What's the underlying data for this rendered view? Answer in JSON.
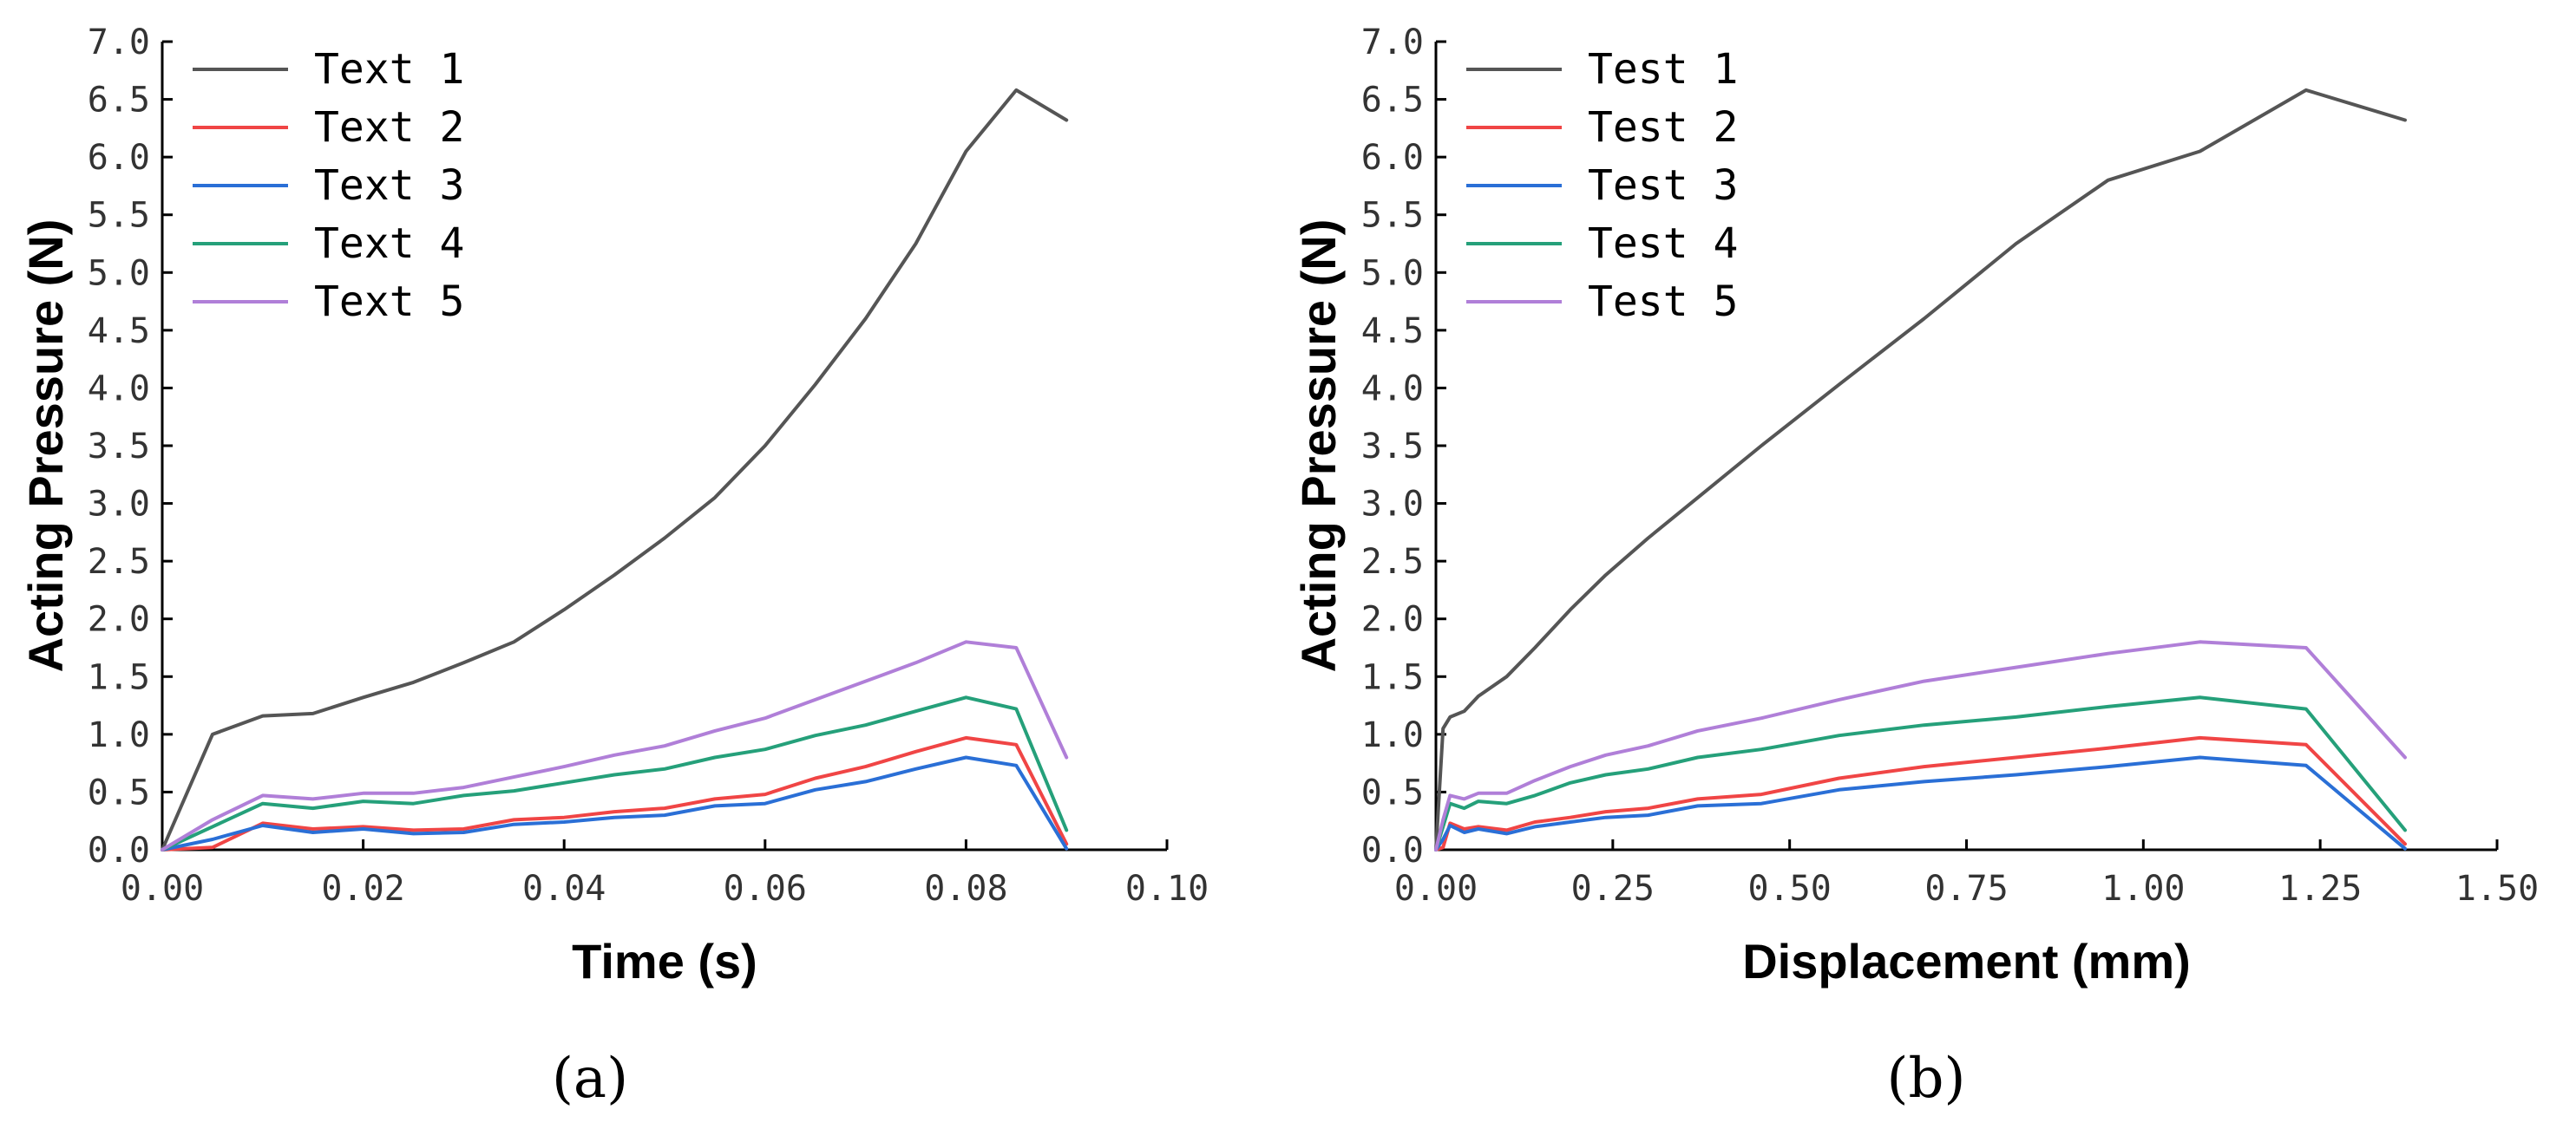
{
  "chart_data": [
    {
      "type": "line",
      "panel_label": "(a)",
      "xlabel": "Time (s)",
      "ylabel": "Acting Pressure (N)",
      "xlim": [
        0,
        0.1
      ],
      "ylim": [
        0,
        7
      ],
      "xticks": [
        "0.00",
        "0.02",
        "0.04",
        "0.06",
        "0.08",
        "0.10"
      ],
      "yticks": [
        "0.0",
        "0.5",
        "1.0",
        "1.5",
        "2.0",
        "2.5",
        "3.0",
        "3.5",
        "4.0",
        "4.5",
        "5.0",
        "5.5",
        "6.0",
        "6.5",
        "7.0"
      ],
      "legend_position": "top-left",
      "series": [
        {
          "name": "Text 1",
          "color": "#555555",
          "x": [
            0,
            0.005,
            0.01,
            0.015,
            0.02,
            0.025,
            0.03,
            0.035,
            0.04,
            0.045,
            0.05,
            0.055,
            0.06,
            0.065,
            0.07,
            0.075,
            0.08,
            0.085,
            0.09
          ],
          "y": [
            0,
            1.0,
            1.16,
            1.18,
            1.32,
            1.45,
            1.62,
            1.8,
            2.08,
            2.38,
            2.7,
            3.05,
            3.5,
            4.03,
            4.6,
            5.25,
            6.05,
            6.58,
            6.32
          ]
        },
        {
          "name": "Text 2",
          "color": "#f04545",
          "x": [
            0,
            0.005,
            0.01,
            0.015,
            0.02,
            0.025,
            0.03,
            0.035,
            0.04,
            0.045,
            0.05,
            0.055,
            0.06,
            0.065,
            0.07,
            0.075,
            0.08,
            0.085,
            0.09
          ],
          "y": [
            0,
            0.02,
            0.23,
            0.18,
            0.2,
            0.17,
            0.18,
            0.26,
            0.28,
            0.33,
            0.36,
            0.44,
            0.48,
            0.62,
            0.72,
            0.85,
            0.97,
            0.91,
            0.05
          ]
        },
        {
          "name": "Text 3",
          "color": "#2a6fd6",
          "x": [
            0,
            0.005,
            0.01,
            0.015,
            0.02,
            0.025,
            0.03,
            0.035,
            0.04,
            0.045,
            0.05,
            0.055,
            0.06,
            0.065,
            0.07,
            0.075,
            0.08,
            0.085,
            0.09
          ],
          "y": [
            0,
            0.09,
            0.21,
            0.15,
            0.18,
            0.14,
            0.15,
            0.22,
            0.24,
            0.28,
            0.3,
            0.38,
            0.4,
            0.52,
            0.59,
            0.7,
            0.8,
            0.73,
            0.01
          ]
        },
        {
          "name": "Text 4",
          "color": "#25a07a",
          "x": [
            0,
            0.005,
            0.01,
            0.015,
            0.02,
            0.025,
            0.03,
            0.035,
            0.04,
            0.045,
            0.05,
            0.055,
            0.06,
            0.065,
            0.07,
            0.075,
            0.08,
            0.085,
            0.09
          ],
          "y": [
            0,
            0.2,
            0.4,
            0.36,
            0.42,
            0.4,
            0.47,
            0.51,
            0.58,
            0.65,
            0.7,
            0.8,
            0.87,
            0.99,
            1.08,
            1.2,
            1.32,
            1.22,
            0.17
          ]
        },
        {
          "name": "Text 5",
          "color": "#b07fd8",
          "x": [
            0,
            0.005,
            0.01,
            0.015,
            0.02,
            0.025,
            0.03,
            0.035,
            0.04,
            0.045,
            0.05,
            0.055,
            0.06,
            0.065,
            0.07,
            0.075,
            0.08,
            0.085,
            0.09
          ],
          "y": [
            0,
            0.26,
            0.47,
            0.44,
            0.49,
            0.49,
            0.54,
            0.63,
            0.72,
            0.82,
            0.9,
            1.03,
            1.14,
            1.3,
            1.46,
            1.62,
            1.8,
            1.75,
            0.8
          ]
        }
      ]
    },
    {
      "type": "line",
      "panel_label": "(b)",
      "xlabel": "Displacement (mm)",
      "ylabel": "Acting Pressure (N)",
      "xlim": [
        0,
        1.5
      ],
      "ylim": [
        0,
        7
      ],
      "xticks": [
        "0.00",
        "0.25",
        "0.50",
        "0.75",
        "1.00",
        "1.25",
        "1.50"
      ],
      "yticks": [
        "0.0",
        "0.5",
        "1.0",
        "1.5",
        "2.0",
        "2.5",
        "3.0",
        "3.5",
        "4.0",
        "4.5",
        "5.0",
        "5.5",
        "6.0",
        "6.5",
        "7.0"
      ],
      "legend_position": "top-left",
      "series": [
        {
          "name": "Test 1",
          "color": "#555555",
          "x": [
            0,
            0.01,
            0.02,
            0.04,
            0.06,
            0.1,
            0.14,
            0.19,
            0.24,
            0.3,
            0.37,
            0.46,
            0.57,
            0.69,
            0.82,
            0.95,
            1.08,
            1.23,
            1.37
          ],
          "y": [
            0,
            1.05,
            1.15,
            1.2,
            1.33,
            1.5,
            1.75,
            2.08,
            2.38,
            2.7,
            3.05,
            3.5,
            4.03,
            4.6,
            5.25,
            5.8,
            6.05,
            6.58,
            6.32
          ]
        },
        {
          "name": "Test 2",
          "color": "#f04545",
          "x": [
            0,
            0.01,
            0.02,
            0.04,
            0.06,
            0.1,
            0.14,
            0.19,
            0.24,
            0.3,
            0.37,
            0.46,
            0.57,
            0.69,
            0.82,
            0.95,
            1.08,
            1.23,
            1.37
          ],
          "y": [
            0,
            0.02,
            0.23,
            0.18,
            0.2,
            0.17,
            0.24,
            0.28,
            0.33,
            0.36,
            0.44,
            0.48,
            0.62,
            0.72,
            0.8,
            0.88,
            0.97,
            0.91,
            0.05
          ]
        },
        {
          "name": "Test 3",
          "color": "#2a6fd6",
          "x": [
            0,
            0.01,
            0.02,
            0.04,
            0.06,
            0.1,
            0.14,
            0.19,
            0.24,
            0.3,
            0.37,
            0.46,
            0.57,
            0.69,
            0.82,
            0.95,
            1.08,
            1.23,
            1.37
          ],
          "y": [
            0,
            0.09,
            0.21,
            0.15,
            0.18,
            0.14,
            0.2,
            0.24,
            0.28,
            0.3,
            0.38,
            0.4,
            0.52,
            0.59,
            0.65,
            0.72,
            0.8,
            0.73,
            0.01
          ]
        },
        {
          "name": "Test 4",
          "color": "#25a07a",
          "x": [
            0,
            0.01,
            0.02,
            0.04,
            0.06,
            0.1,
            0.14,
            0.19,
            0.24,
            0.3,
            0.37,
            0.46,
            0.57,
            0.69,
            0.82,
            0.95,
            1.08,
            1.23,
            1.37
          ],
          "y": [
            0,
            0.2,
            0.4,
            0.36,
            0.42,
            0.4,
            0.47,
            0.58,
            0.65,
            0.7,
            0.8,
            0.87,
            0.99,
            1.08,
            1.15,
            1.24,
            1.32,
            1.22,
            0.17
          ]
        },
        {
          "name": "Test 5",
          "color": "#b07fd8",
          "x": [
            0,
            0.01,
            0.02,
            0.04,
            0.06,
            0.1,
            0.14,
            0.19,
            0.24,
            0.3,
            0.37,
            0.46,
            0.57,
            0.69,
            0.82,
            0.95,
            1.08,
            1.23,
            1.37
          ],
          "y": [
            0,
            0.26,
            0.47,
            0.44,
            0.49,
            0.49,
            0.6,
            0.72,
            0.82,
            0.9,
            1.03,
            1.14,
            1.3,
            1.46,
            1.58,
            1.7,
            1.8,
            1.75,
            0.8
          ]
        }
      ]
    }
  ]
}
